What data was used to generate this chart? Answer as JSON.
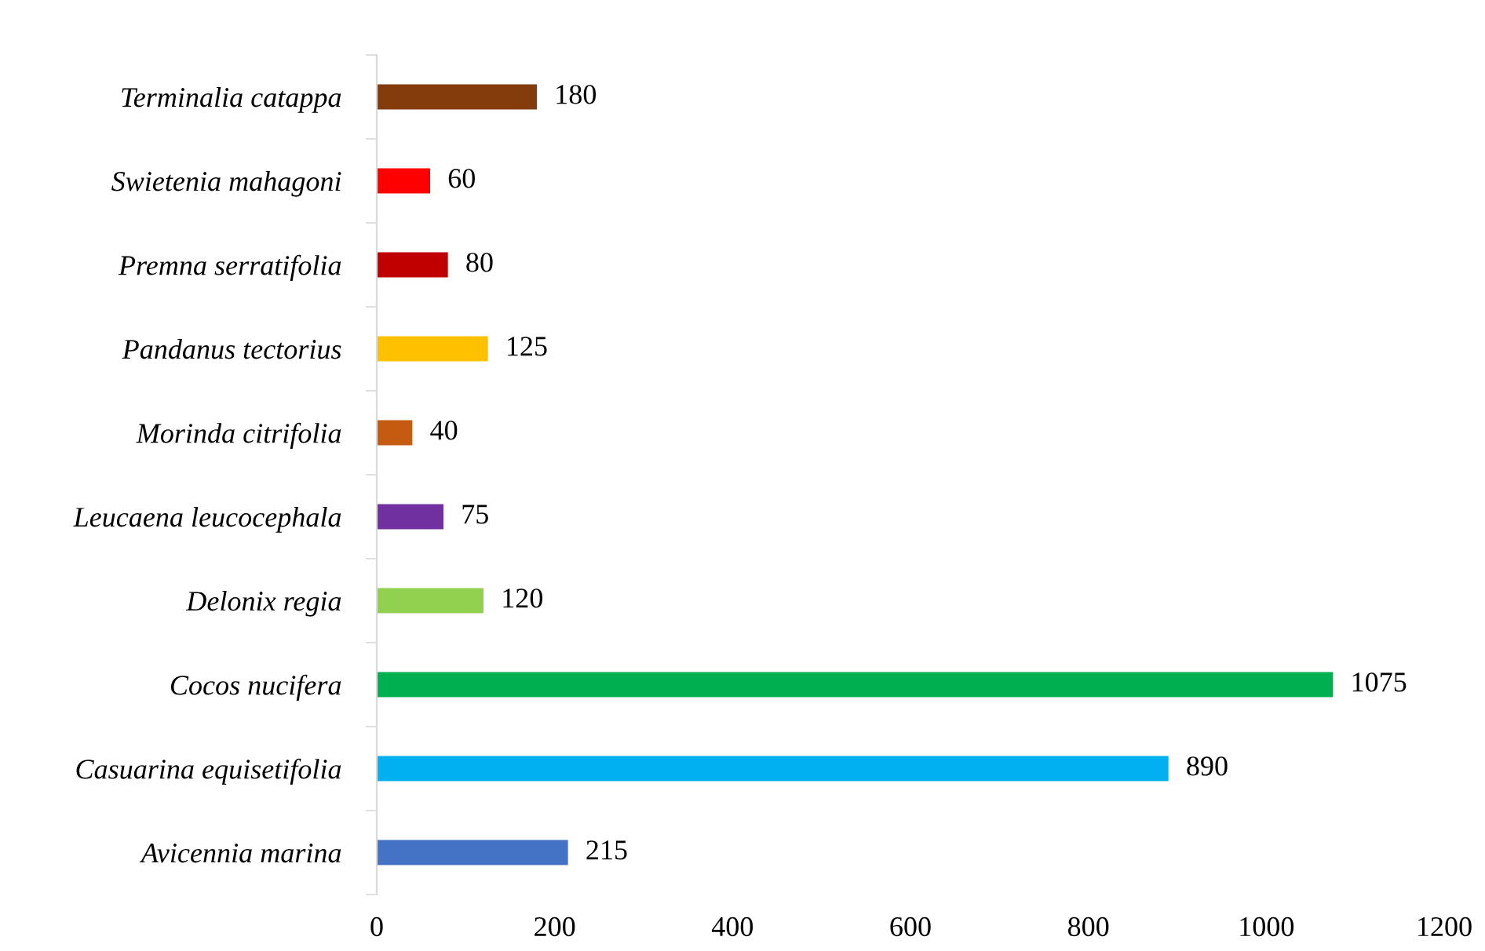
{
  "chart_data": {
    "type": "bar",
    "orientation": "horizontal",
    "categories": [
      "Terminalia catappa",
      "Swietenia mahagoni",
      "Premna serratifolia",
      "Pandanus tectorius",
      "Morinda citrifolia",
      "Leucaena leucocephala",
      "Delonix regia",
      "Cocos nucifera",
      "Casuarina equisetifolia",
      "Avicennia marina"
    ],
    "values": [
      180,
      60,
      80,
      125,
      40,
      75,
      120,
      1075,
      890,
      215
    ],
    "colors": [
      "#843c0c",
      "#ff0000",
      "#c00000",
      "#ffc000",
      "#c55a11",
      "#7030a0",
      "#92d050",
      "#00b050",
      "#00b0f0",
      "#4472c4"
    ],
    "xlim": [
      0,
      1200
    ],
    "xticks": [
      0,
      200,
      400,
      600,
      800,
      1000,
      1200
    ],
    "data_labels": true,
    "grid": false,
    "legend": false
  }
}
